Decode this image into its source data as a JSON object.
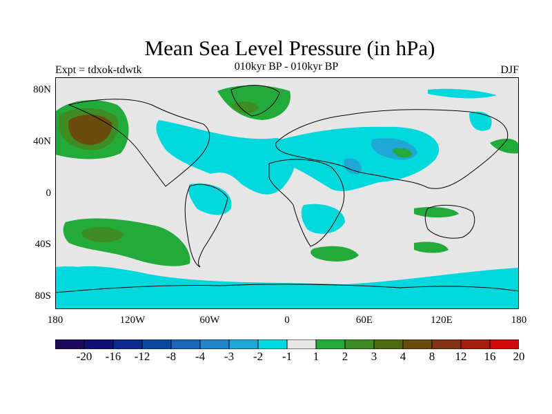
{
  "title": "Mean Sea Level Pressure (in hPa)",
  "experiment": "Expt = tdxok-tdwtk",
  "subtitle": "010kyr BP - 010kyr BP",
  "season": "DJF",
  "lat_labels": [
    "80N",
    "40N",
    "0",
    "40S",
    "80S"
  ],
  "lon_labels": [
    "180",
    "120W",
    "60W",
    "0",
    "60E",
    "120E",
    "180"
  ],
  "colorbar": {
    "labels": [
      "-20",
      "-16",
      "-12",
      "-8",
      "-4",
      "-3",
      "-2",
      "-1",
      "1",
      "2",
      "3",
      "4",
      "8",
      "12",
      "16",
      "20"
    ],
    "colors": [
      "#1a0a5c",
      "#0d1175",
      "#0c2a8f",
      "#0d47a6",
      "#1a66bb",
      "#2185cc",
      "#1fa8d6",
      "#00d8de",
      "#e6e6e6",
      "#22aa3a",
      "#3e8c22",
      "#4d6a10",
      "#6a4b10",
      "#863214",
      "#a81e0e",
      "#cf0a0a"
    ]
  },
  "palette": {
    "ocean_neutral": "#e6e6e6",
    "neg_light": "#00d8de",
    "neg_mid": "#1fa8d6",
    "pos_light": "#22aa3a",
    "pos_mid": "#3e8c22",
    "pos_high": "#6a4b10"
  }
}
